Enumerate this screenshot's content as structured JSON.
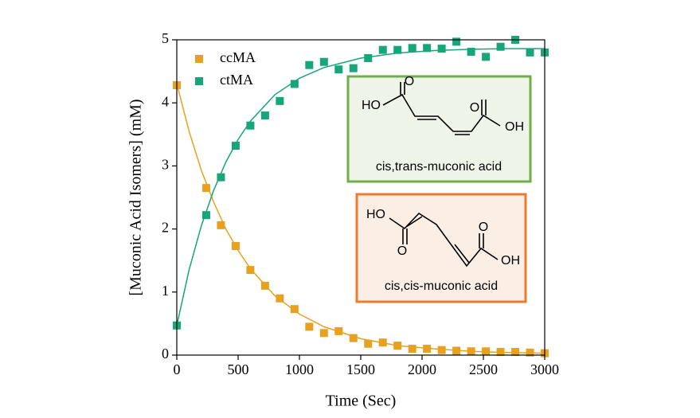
{
  "chart_data": {
    "type": "scatter",
    "xlabel": "Time (Sec)",
    "ylabel": "[Muconic Acid Isomers] (mM)",
    "xlim": [
      0,
      3000
    ],
    "xticks": [
      0,
      500,
      1000,
      1500,
      2000,
      2500,
      3000
    ],
    "ylim": [
      0,
      5
    ],
    "yticks": [
      0,
      1,
      2,
      3,
      4,
      5
    ],
    "legend": "upper left",
    "series": [
      {
        "name": "ccMA",
        "color": "#e8a020",
        "x": [
          0,
          240,
          360,
          480,
          600,
          720,
          840,
          960,
          1080,
          1200,
          1320,
          1440,
          1560,
          1680,
          1800,
          1920,
          2040,
          2160,
          2280,
          2400,
          2520,
          2640,
          2760,
          2880,
          3000
        ],
        "values": [
          4.28,
          2.65,
          2.06,
          1.73,
          1.35,
          1.1,
          0.9,
          0.73,
          0.45,
          0.35,
          0.38,
          0.27,
          0.18,
          0.2,
          0.15,
          0.1,
          0.1,
          0.08,
          0.07,
          0.06,
          0.06,
          0.05,
          0.05,
          0.04,
          0.03
        ]
      },
      {
        "name": "ctMA",
        "color": "#17a57a",
        "x": [
          0,
          240,
          360,
          480,
          600,
          720,
          840,
          960,
          1080,
          1200,
          1320,
          1440,
          1560,
          1680,
          1800,
          1920,
          2040,
          2160,
          2280,
          2400,
          2520,
          2640,
          2760,
          2880,
          3000
        ],
        "values": [
          0.47,
          2.22,
          2.82,
          3.32,
          3.64,
          3.8,
          4.03,
          4.3,
          4.6,
          4.65,
          4.53,
          4.55,
          4.71,
          4.84,
          4.84,
          4.87,
          4.87,
          4.86,
          4.97,
          4.81,
          4.73,
          4.89,
          5.0,
          4.8,
          4.8
        ]
      }
    ],
    "fits": [
      {
        "color": "#e8a020",
        "x": [
          0,
          100,
          200,
          300,
          400,
          500,
          600,
          800,
          1000,
          1200,
          1500,
          1800,
          2100,
          2400,
          2700,
          3000
        ],
        "values": [
          4.3,
          3.55,
          2.93,
          2.43,
          2.0,
          1.66,
          1.37,
          0.94,
          0.65,
          0.45,
          0.26,
          0.15,
          0.1,
          0.06,
          0.04,
          0.03
        ]
      },
      {
        "color": "#17a57a",
        "x": [
          0,
          100,
          200,
          300,
          400,
          500,
          600,
          800,
          1000,
          1200,
          1500,
          1800,
          2100,
          2400,
          2700,
          3000
        ],
        "values": [
          0.47,
          1.35,
          2.05,
          2.61,
          3.06,
          3.42,
          3.71,
          4.13,
          4.39,
          4.56,
          4.71,
          4.79,
          4.83,
          4.85,
          4.86,
          4.86
        ]
      }
    ],
    "insets": [
      {
        "caption": "cis,trans-muconic acid",
        "atoms": [
          "HO",
          "O",
          "O",
          "OH"
        ]
      },
      {
        "caption": "cis,cis-muconic acid",
        "atoms": [
          "HO",
          "O",
          "O",
          "OH"
        ]
      }
    ]
  }
}
